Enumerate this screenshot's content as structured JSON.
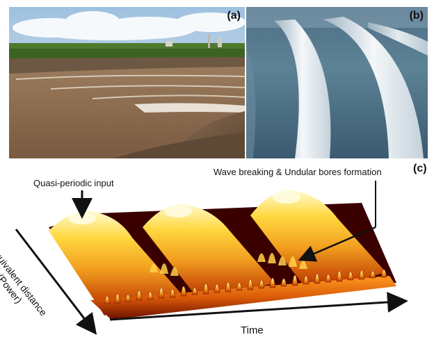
{
  "panels": {
    "a": {
      "label": "(a)",
      "image": "river-tidal-bore-photo"
    },
    "b": {
      "label": "(b)",
      "image": "morning-glory-cloud-photo"
    },
    "c": {
      "label": "(c)",
      "image": "3d-wave-surface-plot",
      "annotation_input": "Quasi-periodic input",
      "annotation_breaking": "Wave breaking & Undular bores formation",
      "axis_time": "Time",
      "axis_distance_line1": "Equivalent distance",
      "axis_distance_line2": "(Power)"
    }
  },
  "colors": {
    "surface_peak": "#fffbd0",
    "surface_mid": "#f2a020",
    "surface_low": "#b02000",
    "surface_trough": "#3a0000",
    "sky": "#cfe0ee",
    "water": "#8a6a4c"
  }
}
